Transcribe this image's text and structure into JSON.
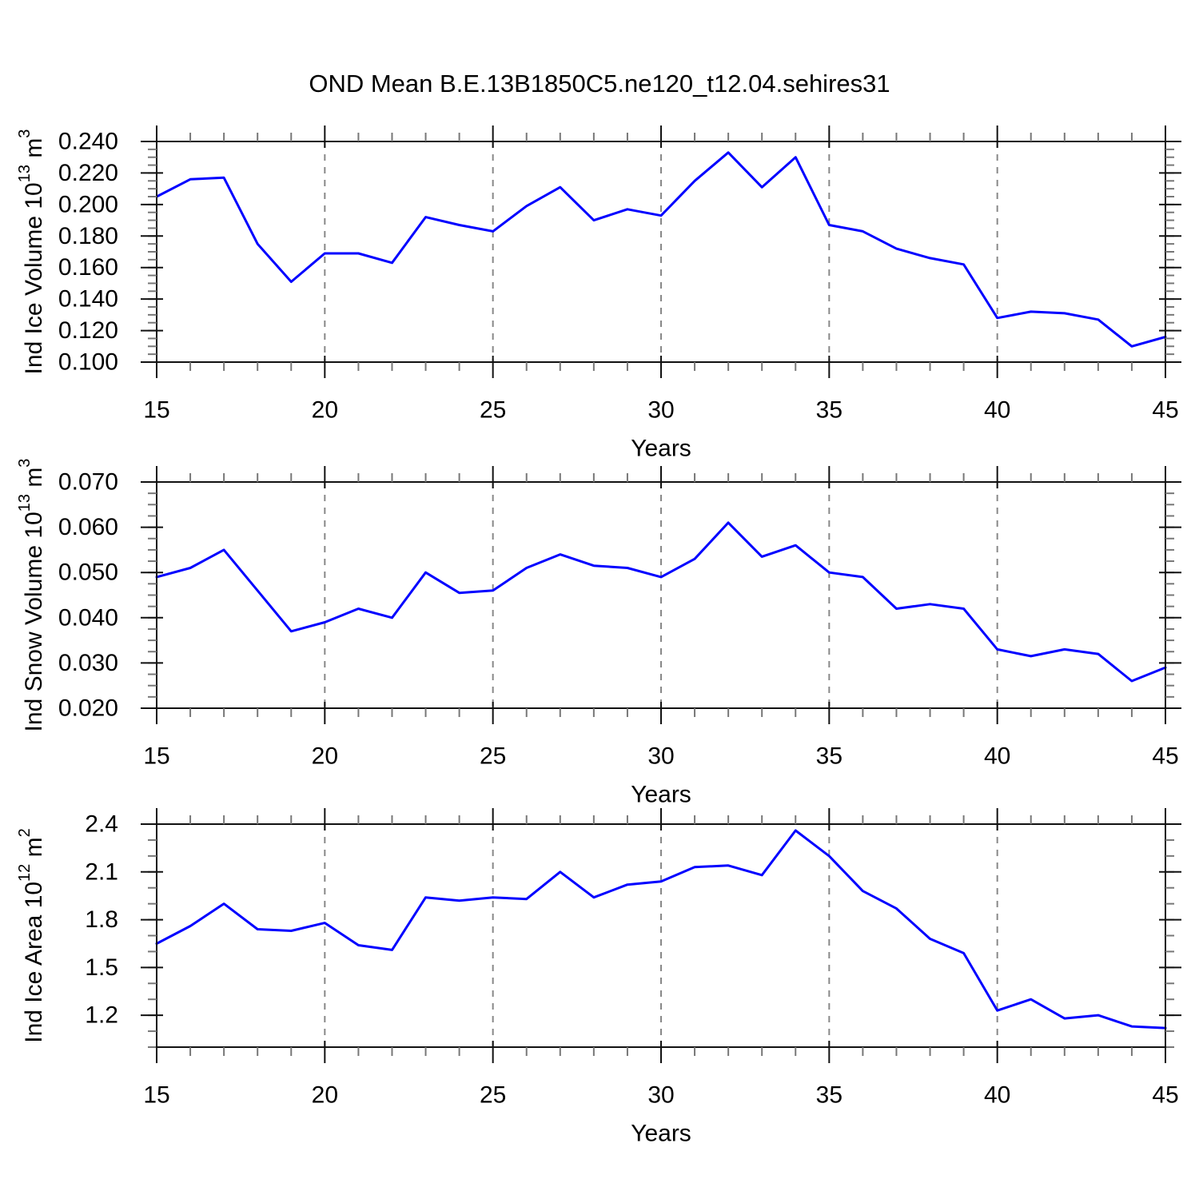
{
  "colors": {
    "line": "#0000ff",
    "axis": "#111111",
    "grid": "#888888"
  },
  "chart_data": {
    "type": "line",
    "title": "OND Mean B.E.13B1850C5.ne120_t12.04.sehires31",
    "xlabel": "Years",
    "x": [
      15,
      16,
      17,
      18,
      19,
      20,
      21,
      22,
      23,
      24,
      25,
      26,
      27,
      28,
      29,
      30,
      31,
      32,
      33,
      34,
      35,
      36,
      37,
      38,
      39,
      40,
      41,
      42,
      43,
      44,
      45
    ],
    "xticks": [
      15,
      20,
      25,
      30,
      35,
      40,
      45
    ],
    "grid_x": [
      20,
      25,
      30,
      35,
      40
    ],
    "xlim": [
      15,
      45
    ],
    "legend": "none",
    "panels": [
      {
        "name": "ind-ice-volume",
        "ylabel": "Ind Ice Volume 10^13 m^3",
        "ylabel_parts": [
          {
            "t": "Ind Ice Volume 10",
            "sup": false
          },
          {
            "t": "13",
            "sup": true
          },
          {
            "t": " m",
            "sup": false
          },
          {
            "t": "3",
            "sup": true
          }
        ],
        "ylim": [
          0.1,
          0.24
        ],
        "yticks": [
          0.1,
          0.12,
          0.14,
          0.16,
          0.18,
          0.2,
          0.22,
          0.24
        ],
        "yminor_step": 0.005,
        "ytick_decimals": 3,
        "values": [
          0.205,
          0.216,
          0.217,
          0.175,
          0.151,
          0.169,
          0.169,
          0.163,
          0.192,
          0.187,
          0.183,
          0.199,
          0.211,
          0.19,
          0.197,
          0.193,
          0.215,
          0.233,
          0.211,
          0.23,
          0.187,
          0.183,
          0.172,
          0.166,
          0.162,
          0.128,
          0.132,
          0.131,
          0.127,
          0.11,
          0.116
        ]
      },
      {
        "name": "ind-snow-volume",
        "ylabel": "Ind Snow Volume 10^13 m^3",
        "ylabel_parts": [
          {
            "t": "Ind Snow Volume 10",
            "sup": false
          },
          {
            "t": "13",
            "sup": true
          },
          {
            "t": " m",
            "sup": false
          },
          {
            "t": "3",
            "sup": true
          }
        ],
        "ylim": [
          0.02,
          0.07
        ],
        "yticks": [
          0.02,
          0.03,
          0.04,
          0.05,
          0.06,
          0.07
        ],
        "yminor_step": 0.0025,
        "ytick_decimals": 3,
        "values": [
          0.049,
          0.051,
          0.055,
          0.046,
          0.037,
          0.039,
          0.042,
          0.04,
          0.05,
          0.0455,
          0.046,
          0.051,
          0.054,
          0.0515,
          0.051,
          0.049,
          0.053,
          0.061,
          0.0535,
          0.056,
          0.05,
          0.049,
          0.042,
          0.043,
          0.042,
          0.033,
          0.0315,
          0.033,
          0.032,
          0.026,
          0.029
        ]
      },
      {
        "name": "ind-ice-area",
        "ylabel": "Ind Ice Area 10^12 m^2",
        "ylabel_parts": [
          {
            "t": "Ind Ice Area 10",
            "sup": false
          },
          {
            "t": "12",
            "sup": true
          },
          {
            "t": " m",
            "sup": false
          },
          {
            "t": "2",
            "sup": true
          }
        ],
        "ylim": [
          1.0,
          2.4
        ],
        "yticks": [
          1.2,
          1.5,
          1.8,
          2.1,
          2.4
        ],
        "yminor_step": 0.1,
        "ytick_decimals": 1,
        "values": [
          1.65,
          1.76,
          1.9,
          1.74,
          1.73,
          1.78,
          1.64,
          1.61,
          1.94,
          1.92,
          1.94,
          1.93,
          2.1,
          1.94,
          2.02,
          2.04,
          2.13,
          2.14,
          2.08,
          2.36,
          2.2,
          1.98,
          1.87,
          1.68,
          1.59,
          1.23,
          1.3,
          1.18,
          1.2,
          1.13,
          1.12
        ]
      }
    ]
  }
}
